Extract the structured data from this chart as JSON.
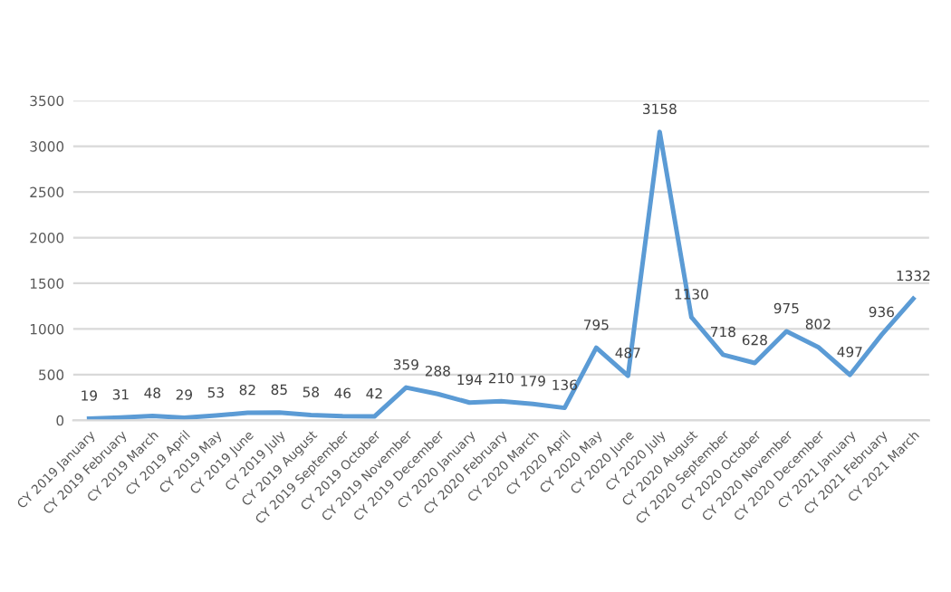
{
  "chart_data": {
    "type": "line",
    "categories": [
      "CY 2019 January",
      "CY 2019 February",
      "CY 2019 March",
      "CY 2019 April",
      "CY 2019 May",
      "CY 2019 June",
      "CY 2019 July",
      "CY 2019 August",
      "CY 2019 September",
      "CY 2019 October",
      "CY 2019 November",
      "CY 2019 December",
      "CY 2020 January",
      "CY 2020 February",
      "CY 2020 March",
      "CY 2020 April",
      "CY 2020 May",
      "CY 2020 June",
      "CY 2020 July",
      "CY 2020 August",
      "CY 2020 September",
      "CY 2020 October",
      "CY 2020 November",
      "CY 2020 December",
      "CY 2021 January",
      "CY 2021 February",
      "CY 2021 March"
    ],
    "series": [
      {
        "color": "#5b9bd5",
        "values": [
          19,
          31,
          48,
          29,
          53,
          82,
          85,
          58,
          46,
          42,
          359,
          288,
          194,
          210,
          179,
          136,
          795,
          487,
          3158,
          1130,
          718,
          628,
          975,
          802,
          497,
          936,
          1332
        ]
      }
    ],
    "ylim": [
      0,
      3500
    ],
    "yticks": [
      0,
      500,
      1000,
      1500,
      2000,
      2500,
      3000,
      3500
    ],
    "grid": "y",
    "data_labels": true,
    "marker": "none",
    "line_style": "solid"
  }
}
